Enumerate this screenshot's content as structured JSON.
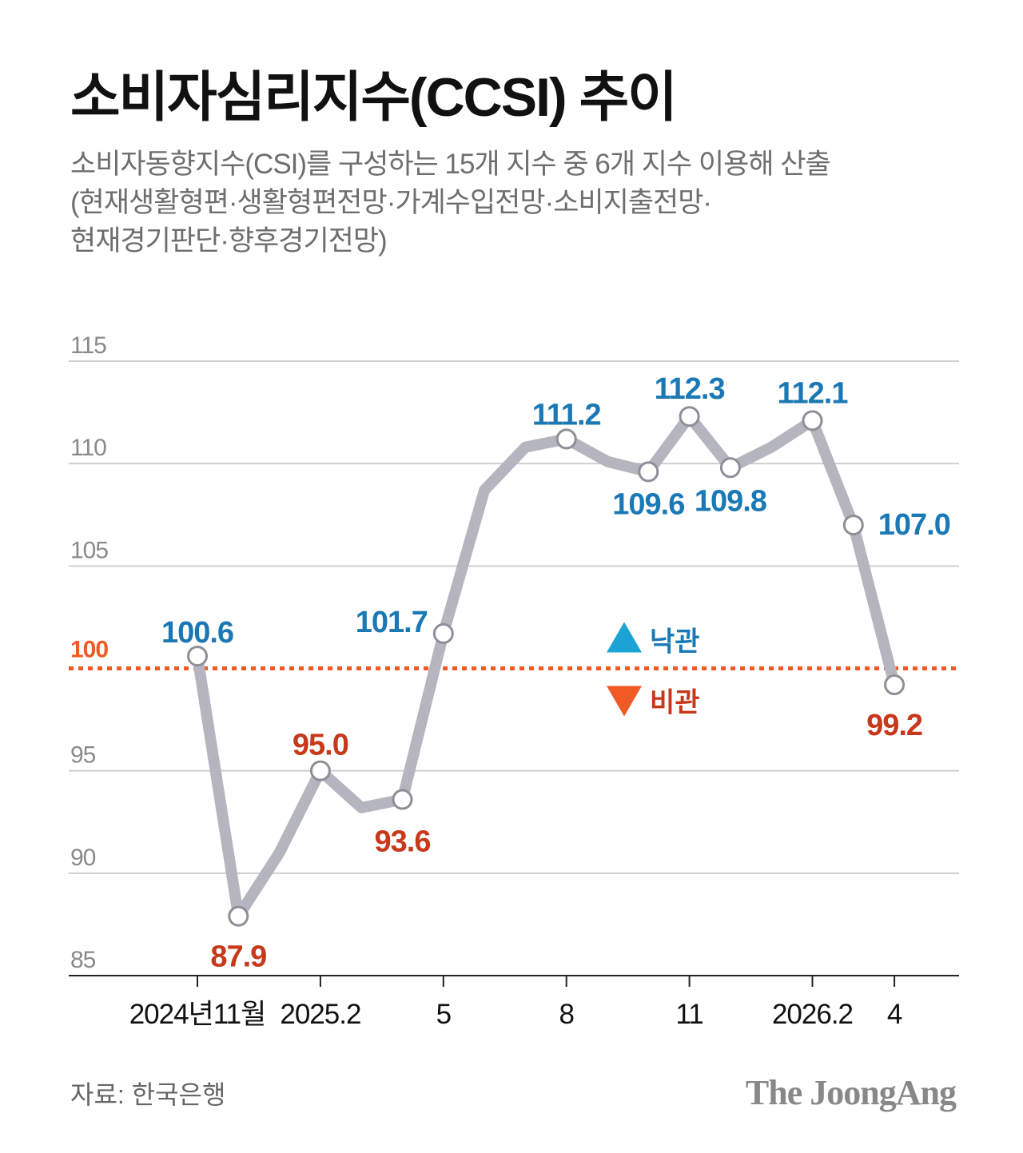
{
  "title": "소비자심리지수(CCSI) 추이",
  "subtitle_lines": [
    "소비자동향지수(CSI)를 구성하는 15개 지수 중 6개 지수 이용해 산출",
    "(현재생활형편·생활형편전망·가계수입전망·소비지출전망·",
    "현재경기판단·향후경기전망)"
  ],
  "source": "자료: 한국은행",
  "logo": "The JoongAng",
  "chart_data": {
    "type": "line",
    "x": [
      "2024-11",
      "2024-12",
      "2025-01",
      "2025-02",
      "2025-03",
      "2025-04",
      "2025-05",
      "2025-06",
      "2025-07",
      "2025-08",
      "2025-09",
      "2025-10",
      "2025-11",
      "2025-12",
      "2026-01",
      "2026-02",
      "2026-03",
      "2026-04"
    ],
    "values": [
      100.6,
      87.9,
      91.0,
      95.0,
      93.2,
      93.6,
      101.7,
      108.7,
      110.8,
      111.2,
      110.1,
      109.6,
      112.3,
      109.8,
      110.8,
      112.1,
      107.0,
      99.2
    ],
    "labeled_points": [
      {
        "index": 0,
        "label": "100.6",
        "tone": "optimistic"
      },
      {
        "index": 1,
        "label": "87.9",
        "tone": "pessimistic"
      },
      {
        "index": 3,
        "label": "95.0",
        "tone": "pessimistic"
      },
      {
        "index": 5,
        "label": "93.6",
        "tone": "pessimistic"
      },
      {
        "index": 6,
        "label": "101.7",
        "tone": "optimistic"
      },
      {
        "index": 9,
        "label": "111.2",
        "tone": "optimistic"
      },
      {
        "index": 11,
        "label": "109.6",
        "tone": "optimistic"
      },
      {
        "index": 12,
        "label": "112.3",
        "tone": "optimistic"
      },
      {
        "index": 13,
        "label": "109.8",
        "tone": "optimistic"
      },
      {
        "index": 15,
        "label": "112.1",
        "tone": "optimistic"
      },
      {
        "index": 16,
        "label": "107.0",
        "tone": "optimistic"
      },
      {
        "index": 17,
        "label": "99.2",
        "tone": "pessimistic"
      }
    ],
    "x_ticks": [
      {
        "index": 0,
        "label": "2024년11월"
      },
      {
        "index": 3,
        "label": "2025.2"
      },
      {
        "index": 6,
        "label": "5"
      },
      {
        "index": 9,
        "label": "8"
      },
      {
        "index": 12,
        "label": "11"
      },
      {
        "index": 15,
        "label": "2026.2"
      },
      {
        "index": 17,
        "label": "4"
      }
    ],
    "y_ticks": [
      85,
      90,
      95,
      100,
      105,
      110,
      115
    ],
    "ylim": [
      85,
      115
    ],
    "reference_line": {
      "value": 100,
      "label": "100"
    },
    "legend": {
      "optimistic": "낙관",
      "pessimistic": "비관"
    },
    "grid": true,
    "colors": {
      "line": "#b5b5bf",
      "optimistic": "#1a79b5",
      "pessimistic": "#c8381a",
      "reference": "#f05a24",
      "optimistic_marker": "#1aa3d4",
      "grid": "#cfcfcf",
      "axis_text": "#777777"
    }
  }
}
